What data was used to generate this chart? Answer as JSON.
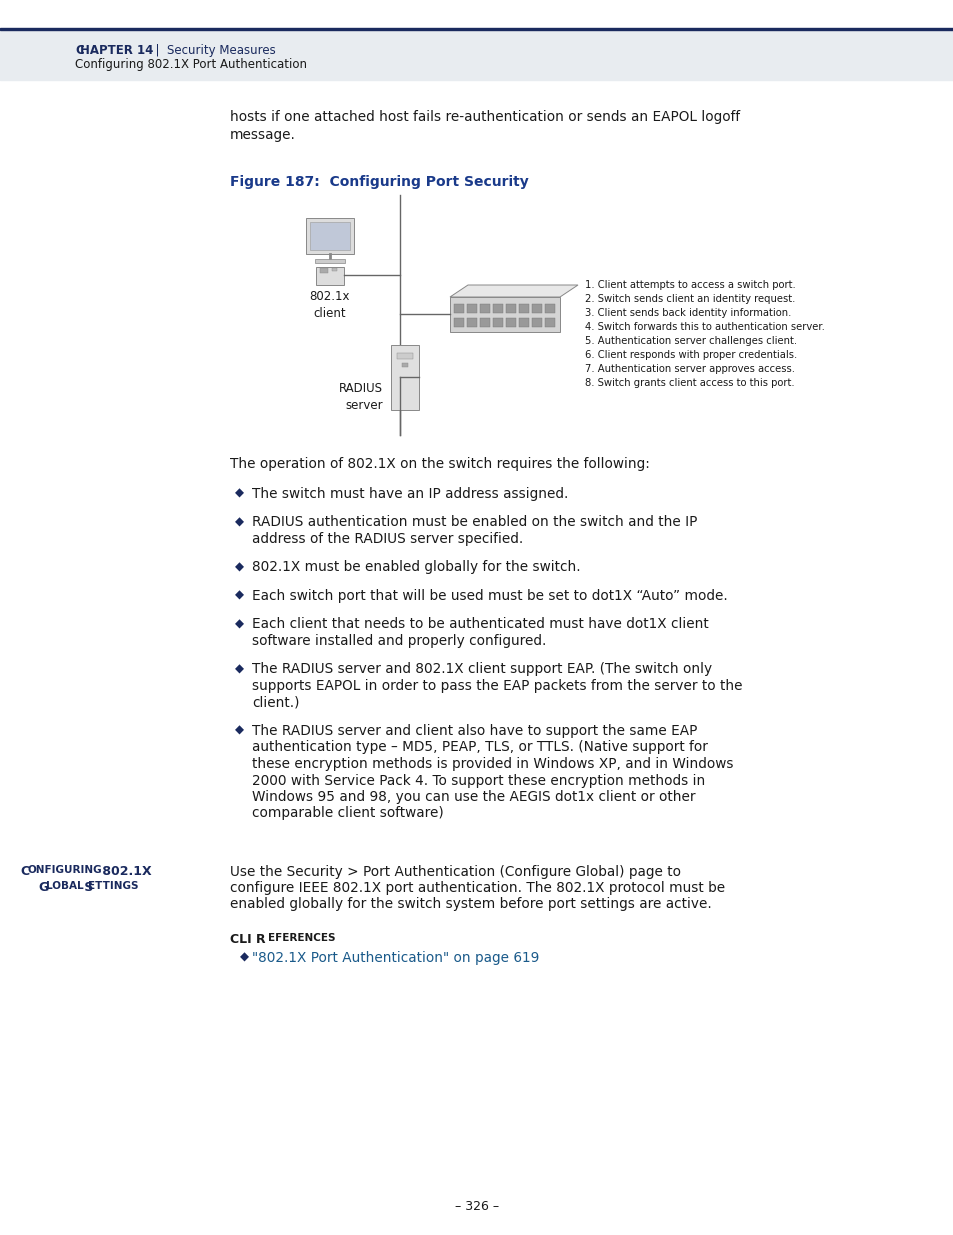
{
  "page_bg": "#ffffff",
  "header_bg": "#e8ecf0",
  "header_line_color": "#1a2a5e",
  "body_text_color": "#1a1a1a",
  "figure_title_color": "#1a3a8a",
  "figure_title": "Figure 187:  Configuring Port Security",
  "intro_line1": "hosts if one attached host fails re-authentication or sends an EAPOL logoff",
  "intro_line2": "message.",
  "operation_text": "The operation of 802.1X on the switch requires the following:",
  "bullet_items": [
    [
      "The switch must have an IP address assigned."
    ],
    [
      "RADIUS authentication must be enabled on the switch and the IP",
      "address of the RADIUS server specified."
    ],
    [
      "802.1X must be enabled globally for the switch."
    ],
    [
      "Each switch port that will be used must be set to dot1X “Auto” mode."
    ],
    [
      "Each client that needs to be authenticated must have dot1X client",
      "software installed and properly configured."
    ],
    [
      "The RADIUS server and 802.1X client support EAP. (The switch only",
      "supports EAPOL in order to pass the EAP packets from the server to the",
      "client.)"
    ],
    [
      "The RADIUS server and client also have to support the same EAP",
      "authentication type – MD5, PEAP, TLS, or TTLS. (Native support for",
      "these encryption methods is provided in Windows XP, and in Windows",
      "2000 with Service Pack 4. To support these encryption methods in",
      "Windows 95 and 98, you can use the AEGIS dot1x client or other",
      "comparable client software)"
    ]
  ],
  "sidebar_title1": "C",
  "sidebar_title1b": "ONFIGURING",
  "sidebar_title1c": " 802.1X",
  "sidebar_title2a": "G",
  "sidebar_title2b": "LOBAL",
  "sidebar_title2c": " S",
  "sidebar_title2d": "ETTINGS",
  "sidebar_color": "#1a2a5e",
  "sidebar_text_lines": [
    "Use the Security > Port Authentication (Configure Global) page to",
    "configure IEEE 802.1X port authentication. The 802.1X protocol must be",
    "enabled globally for the switch system before port settings are active."
  ],
  "cli_ref_title": "CLI R",
  "cli_ref_title2": "EFERENCES",
  "cli_ref_link": "\"802.1X Port Authentication\" on page 619",
  "cli_link_color": "#1a5a8a",
  "diagram_steps": [
    "1. Client attempts to access a switch port.",
    "2. Switch sends client an identity request.",
    "3. Client sends back identity information.",
    "4. Switch forwards this to authentication server.",
    "5. Authentication server challenges client.",
    "6. Client responds with proper credentials.",
    "7. Authentication server approves access.",
    "8. Switch grants client access to this port."
  ],
  "page_number": "– 326 –",
  "diagram_label_client": "802.1x\nclient",
  "diagram_label_radius": "RADIUS\nserver"
}
